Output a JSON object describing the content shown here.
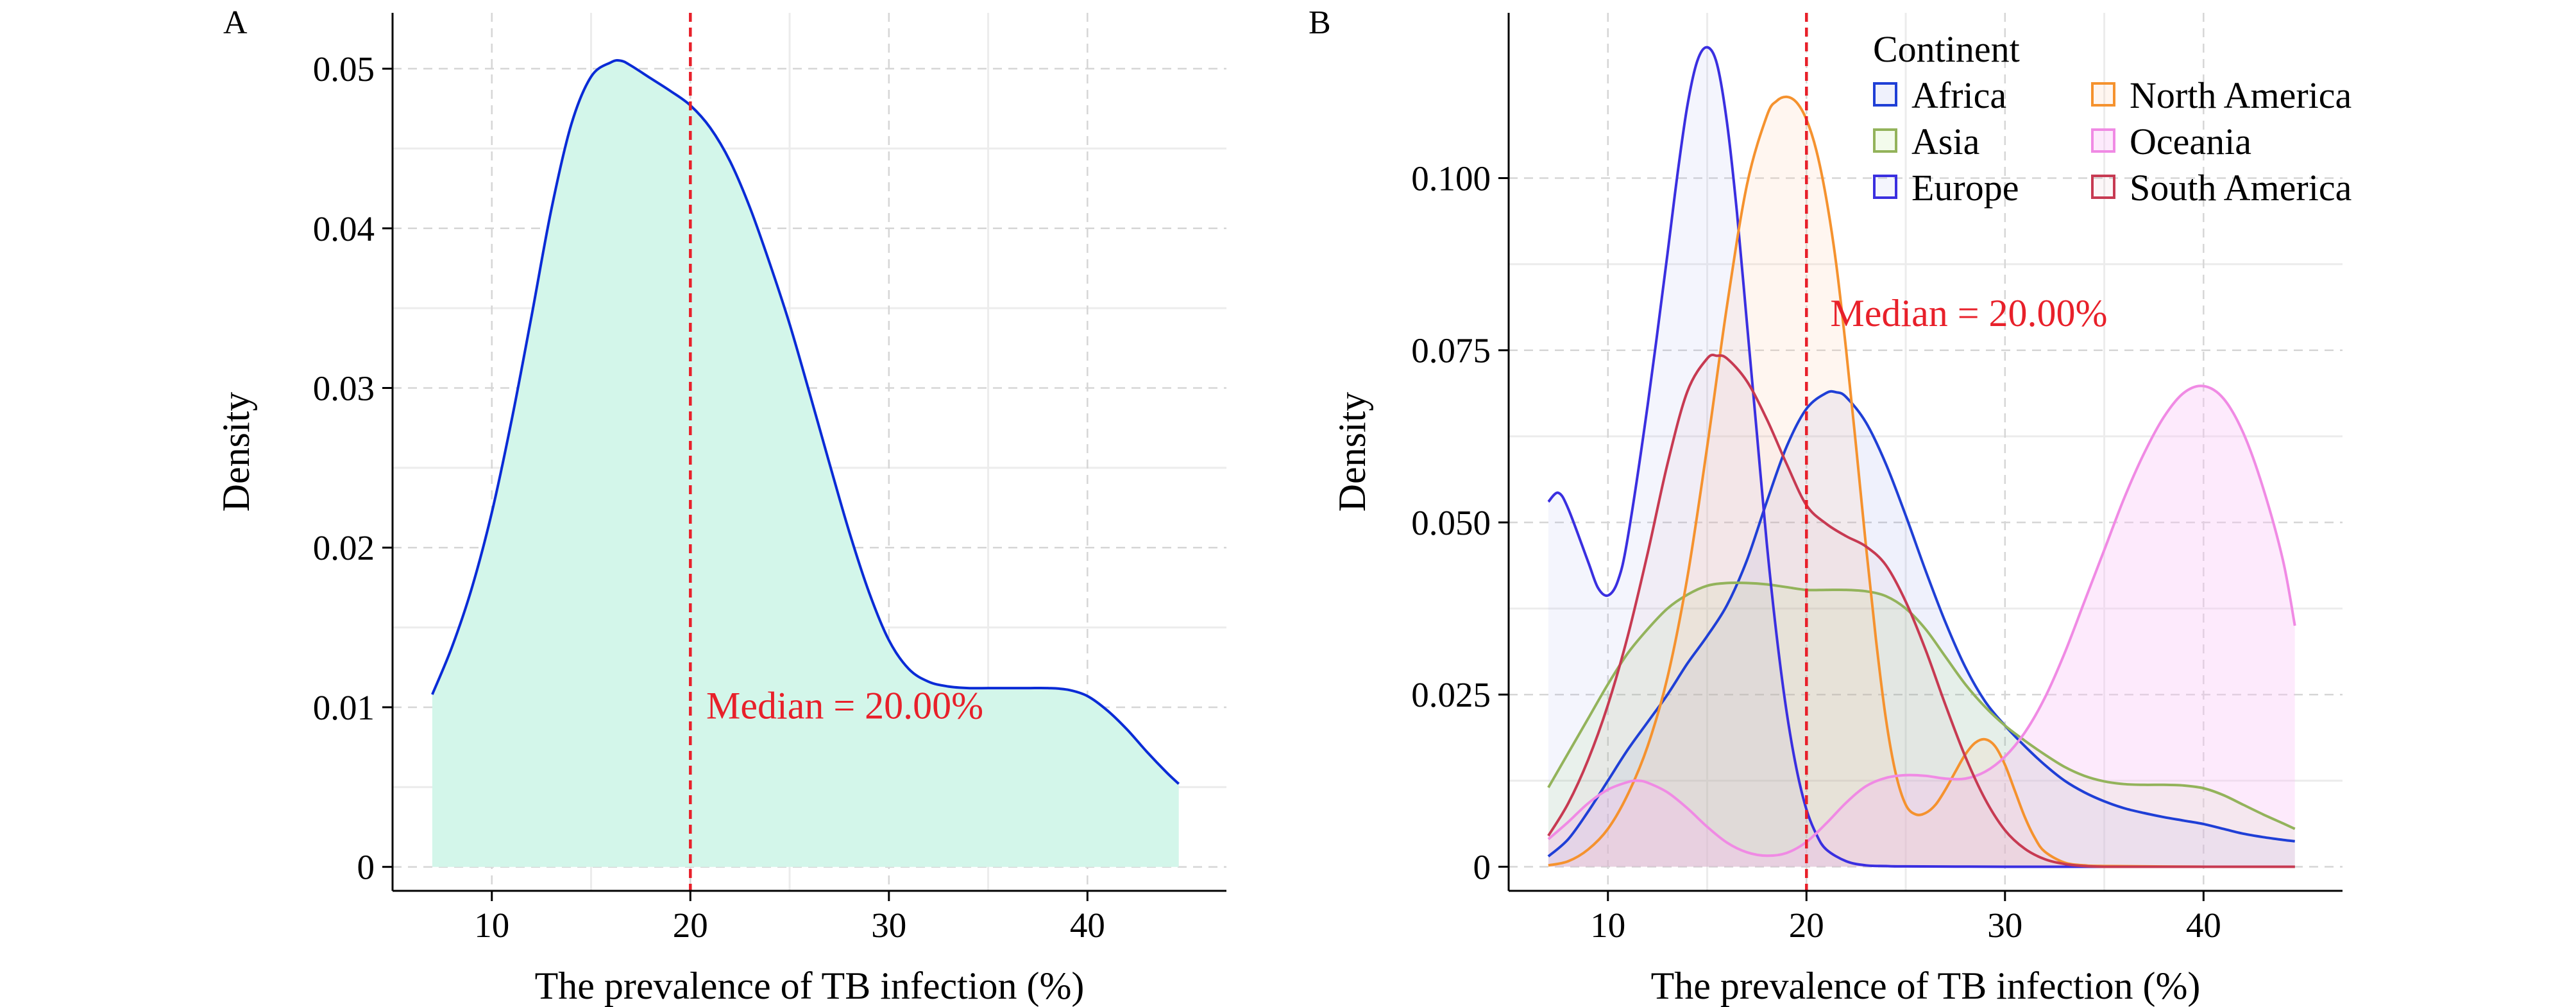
{
  "chart_data": [
    {
      "panel": "A",
      "type": "area",
      "xlabel": "The prevalence of TB infection (%)",
      "ylabel": "Density",
      "xlim": [
        5,
        47
      ],
      "ylim": [
        -0.0015,
        0.0535
      ],
      "xticks": [
        10,
        20,
        30,
        40
      ],
      "xtick_labels": [
        "10",
        "20",
        "30",
        "40"
      ],
      "yticks": [
        0,
        0.01,
        0.02,
        0.03,
        0.04,
        0.05
      ],
      "ytick_labels": [
        "0",
        "0.01",
        "0.02",
        "0.03",
        "0.04",
        "0.05"
      ],
      "grid": true,
      "median_x": 20,
      "median_label": "Median = 20.00%",
      "median_label_pos": {
        "x": 20.8,
        "y": 0.0093
      },
      "series": [
        {
          "color": "#0a2bd6",
          "fill": "#d3f6ea",
          "x": [
            7,
            8,
            9,
            10,
            11,
            12,
            13,
            14,
            15,
            16,
            16.5,
            17,
            18,
            19,
            20,
            21,
            22,
            23,
            24,
            25,
            26,
            27,
            28,
            29,
            30,
            31,
            32,
            33,
            34,
            35,
            36,
            37,
            38,
            39,
            40,
            41,
            42,
            43,
            44,
            44.6
          ],
          "y": [
            0.0108,
            0.0138,
            0.0175,
            0.0222,
            0.028,
            0.0345,
            0.0412,
            0.0465,
            0.0495,
            0.0504,
            0.0505,
            0.0502,
            0.0494,
            0.0486,
            0.0477,
            0.0463,
            0.0442,
            0.0413,
            0.0378,
            0.034,
            0.0297,
            0.0253,
            0.021,
            0.0172,
            0.0142,
            0.0124,
            0.0116,
            0.0113,
            0.0112,
            0.0112,
            0.0112,
            0.0112,
            0.0112,
            0.0111,
            0.0107,
            0.0098,
            0.0086,
            0.0072,
            0.0059,
            0.0052
          ]
        }
      ]
    },
    {
      "panel": "B",
      "type": "area",
      "xlabel": "The prevalence of TB infection (%)",
      "ylabel": "Density",
      "xlim": [
        5,
        47
      ],
      "ylim": [
        -0.0035,
        0.124
      ],
      "xticks": [
        10,
        20,
        30,
        40
      ],
      "xtick_labels": [
        "10",
        "20",
        "30",
        "40"
      ],
      "yticks": [
        0,
        0.025,
        0.05,
        0.075,
        0.1
      ],
      "ytick_labels": [
        "0",
        "0.025",
        "0.050",
        "0.075",
        "0.100"
      ],
      "grid": true,
      "median_x": 20,
      "median_label": "Median = 20.00%",
      "median_label_pos": {
        "x": 21.2,
        "y": 0.0785
      },
      "legend": {
        "title": "Continent",
        "position": "top-right"
      },
      "series": [
        {
          "name": "Africa",
          "color": "#1f3fd6",
          "fill": "rgba(31,63,214,0.07)",
          "x": [
            7,
            8,
            9,
            10,
            11,
            12,
            13,
            14,
            15,
            16,
            17,
            18,
            19,
            20,
            21,
            21.5,
            22,
            23,
            24,
            25,
            26,
            27,
            28,
            29,
            30,
            31,
            32,
            33,
            34,
            35,
            36,
            37,
            38,
            39,
            40,
            41,
            42,
            43,
            44,
            44.6
          ],
          "y": [
            0.0015,
            0.004,
            0.008,
            0.0125,
            0.017,
            0.021,
            0.025,
            0.0295,
            0.0335,
            0.038,
            0.0445,
            0.053,
            0.061,
            0.0665,
            0.0688,
            0.0689,
            0.0682,
            0.0645,
            0.0585,
            0.051,
            0.043,
            0.0355,
            0.029,
            0.024,
            0.0205,
            0.0175,
            0.0148,
            0.0125,
            0.0108,
            0.0095,
            0.0085,
            0.0078,
            0.0072,
            0.0067,
            0.0062,
            0.0055,
            0.0048,
            0.0043,
            0.0039,
            0.0037
          ]
        },
        {
          "name": "Asia",
          "color": "#93b35b",
          "fill": "rgba(170,230,120,0.14)",
          "x": [
            7,
            8,
            9,
            10,
            11,
            12,
            13,
            14,
            15,
            16,
            17,
            18,
            19,
            20,
            21,
            22,
            23,
            24,
            25,
            26,
            27,
            28,
            29,
            30,
            31,
            32,
            33,
            34,
            35,
            36,
            37,
            38,
            39,
            40,
            41,
            42,
            43,
            44,
            44.6
          ],
          "y": [
            0.0115,
            0.0165,
            0.0215,
            0.0265,
            0.031,
            0.0345,
            0.0375,
            0.0395,
            0.0408,
            0.0412,
            0.0412,
            0.041,
            0.0406,
            0.0402,
            0.0402,
            0.0402,
            0.04,
            0.0393,
            0.0375,
            0.0345,
            0.0305,
            0.0265,
            0.0232,
            0.0205,
            0.0183,
            0.0163,
            0.0145,
            0.0132,
            0.0124,
            0.012,
            0.0119,
            0.0119,
            0.0118,
            0.0114,
            0.0104,
            0.009,
            0.0076,
            0.0063,
            0.0055
          ]
        },
        {
          "name": "Europe",
          "color": "#3a2fe0",
          "fill": "rgba(150,160,240,0.10)",
          "x": [
            7,
            7.5,
            8,
            9,
            9.5,
            10,
            10.5,
            11,
            12,
            13,
            13.5,
            14,
            14.5,
            15,
            15.5,
            16,
            16.5,
            17,
            17.5,
            18,
            18.5,
            19,
            19.5,
            20,
            20.5,
            21,
            22,
            23,
            24,
            25,
            30,
            35,
            40,
            44.6
          ],
          "y": [
            0.053,
            0.0543,
            0.052,
            0.0443,
            0.0405,
            0.0394,
            0.0415,
            0.0478,
            0.067,
            0.089,
            0.1005,
            0.1105,
            0.117,
            0.119,
            0.1165,
            0.108,
            0.095,
            0.079,
            0.063,
            0.047,
            0.0335,
            0.0225,
            0.0142,
            0.0083,
            0.0047,
            0.0025,
            0.0008,
            0.0002,
            0.0001,
            5e-05,
            0,
            0,
            0,
            0
          ]
        },
        {
          "name": "North America",
          "color": "#f5922e",
          "fill": "rgba(255,205,170,0.18)",
          "x": [
            7,
            8,
            9,
            10,
            11,
            12,
            13,
            14,
            15,
            16,
            17,
            18,
            18.5,
            19,
            19.5,
            20,
            20.5,
            21,
            21.5,
            22,
            22.5,
            23,
            23.5,
            24,
            24.5,
            25,
            25.5,
            26,
            26.5,
            27,
            27.5,
            28,
            28.5,
            29,
            29.5,
            30,
            30.5,
            31,
            31.5,
            32,
            33,
            34,
            35,
            40,
            44.6
          ],
          "y": [
            0.0002,
            0.0008,
            0.0025,
            0.0055,
            0.0105,
            0.0175,
            0.0275,
            0.042,
            0.061,
            0.0815,
            0.099,
            0.109,
            0.1112,
            0.1118,
            0.111,
            0.1085,
            0.104,
            0.097,
            0.0875,
            0.075,
            0.061,
            0.0465,
            0.033,
            0.0215,
            0.0135,
            0.009,
            0.0076,
            0.0078,
            0.009,
            0.0112,
            0.0138,
            0.0163,
            0.018,
            0.0185,
            0.0175,
            0.0148,
            0.011,
            0.0072,
            0.0042,
            0.0022,
            0.0006,
            0.0002,
            0.0001,
            0,
            0
          ]
        },
        {
          "name": "Oceania",
          "color": "#f08ae4",
          "fill": "rgba(250,195,245,0.35)",
          "x": [
            7,
            8,
            9,
            10,
            11,
            11.5,
            12,
            13,
            14,
            15,
            16,
            17,
            18,
            19,
            20,
            21,
            22,
            23,
            24,
            25,
            26,
            27,
            28,
            29,
            30,
            31,
            32,
            33,
            34,
            35,
            36,
            37,
            38,
            39,
            40,
            41,
            42,
            43,
            44,
            44.6
          ],
          "y": [
            0.004,
            0.0065,
            0.0092,
            0.0112,
            0.0123,
            0.0125,
            0.0122,
            0.0108,
            0.0085,
            0.0058,
            0.0035,
            0.0021,
            0.0016,
            0.002,
            0.0036,
            0.0063,
            0.0093,
            0.0117,
            0.0129,
            0.0133,
            0.0132,
            0.0128,
            0.0128,
            0.0138,
            0.016,
            0.0195,
            0.0245,
            0.031,
            0.0385,
            0.046,
            0.0535,
            0.06,
            0.0653,
            0.0688,
            0.0698,
            0.068,
            0.063,
            0.055,
            0.0445,
            0.035
          ]
        },
        {
          "name": "South America",
          "color": "#c73a52",
          "fill": "rgba(200,120,130,0.06)",
          "x": [
            7,
            8,
            9,
            10,
            11,
            12,
            13,
            14,
            15,
            15.5,
            16,
            17,
            18,
            19,
            20,
            21,
            22,
            23,
            24,
            25,
            26,
            27,
            28,
            29,
            30,
            31,
            32,
            33,
            34,
            35,
            36,
            40,
            44.6
          ],
          "y": [
            0.0045,
            0.0092,
            0.0155,
            0.0235,
            0.0335,
            0.0455,
            0.0585,
            0.069,
            0.0738,
            0.0742,
            0.0738,
            0.0705,
            0.065,
            0.0585,
            0.0525,
            0.0498,
            0.048,
            0.0465,
            0.0438,
            0.0385,
            0.0315,
            0.0235,
            0.016,
            0.0098,
            0.0053,
            0.0026,
            0.0011,
            0.0004,
            0.0001,
            0,
            0,
            0,
            0
          ]
        }
      ]
    }
  ]
}
